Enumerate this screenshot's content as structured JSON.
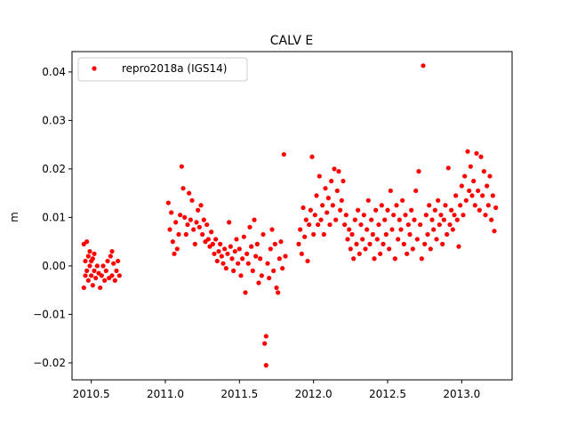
{
  "chart_data": {
    "type": "scatter",
    "title": "CALV E",
    "xlabel": "",
    "ylabel": "m",
    "xlim": [
      2010.37,
      2013.34
    ],
    "ylim": [
      -0.0235,
      0.0442
    ],
    "x_ticks": [
      2010.5,
      2011.0,
      2011.5,
      2012.0,
      2012.5,
      2013.0
    ],
    "x_tick_labels": [
      "2010.5",
      "2011.0",
      "2011.5",
      "2012.0",
      "2012.5",
      "2013.0"
    ],
    "y_ticks": [
      -0.02,
      -0.01,
      0.0,
      0.01,
      0.02,
      0.03,
      0.04
    ],
    "y_tick_labels": [
      "−0.02",
      "−0.01",
      "0.00",
      "0.01",
      "0.02",
      "0.03",
      "0.04"
    ],
    "grid": false,
    "legend": {
      "position": "top-left",
      "entries": [
        "repro2018a (IGS14)"
      ]
    },
    "series": [
      {
        "name": "repro2018a (IGS14)",
        "color": "#ff0000",
        "marker": "circle",
        "points": [
          [
            2010.45,
            -0.0045
          ],
          [
            2010.45,
            0.0045
          ],
          [
            2010.46,
            -0.002
          ],
          [
            2010.46,
            0.001
          ],
          [
            2010.47,
            0.005
          ],
          [
            2010.47,
            -0.001
          ],
          [
            2010.48,
            0.002
          ],
          [
            2010.48,
            -0.003
          ],
          [
            2010.49,
            0.0
          ],
          [
            2010.49,
            0.003
          ],
          [
            2010.5,
            -0.002
          ],
          [
            2010.5,
            0.001
          ],
          [
            2010.51,
            -0.004
          ],
          [
            2010.51,
            0.0015
          ],
          [
            2010.52,
            -0.001
          ],
          [
            2010.52,
            0.0025
          ],
          [
            2010.53,
            -0.0025
          ],
          [
            2010.54,
            0.0
          ],
          [
            2010.55,
            -0.0015
          ],
          [
            2010.56,
            -0.0045
          ],
          [
            2010.57,
            -0.002
          ],
          [
            2010.58,
            0.0
          ],
          [
            2010.59,
            -0.003
          ],
          [
            2010.6,
            -0.001
          ],
          [
            2010.61,
            0.001
          ],
          [
            2010.62,
            -0.0025
          ],
          [
            2010.63,
            0.002
          ],
          [
            2010.64,
            -0.002
          ],
          [
            2010.64,
            0.003
          ],
          [
            2010.65,
            0.0005
          ],
          [
            2010.66,
            -0.003
          ],
          [
            2010.67,
            -0.001
          ],
          [
            2010.68,
            0.001
          ],
          [
            2010.69,
            -0.002
          ],
          [
            2011.02,
            0.013
          ],
          [
            2011.03,
            0.0075
          ],
          [
            2011.04,
            0.011
          ],
          [
            2011.05,
            0.005
          ],
          [
            2011.06,
            0.0025
          ],
          [
            2011.07,
            0.009
          ],
          [
            2011.08,
            0.0035
          ],
          [
            2011.09,
            0.0065
          ],
          [
            2011.1,
            0.0105
          ],
          [
            2011.11,
            0.0205
          ],
          [
            2011.12,
            0.016
          ],
          [
            2011.13,
            0.01
          ],
          [
            2011.14,
            0.0065
          ],
          [
            2011.15,
            0.0085
          ],
          [
            2011.16,
            0.015
          ],
          [
            2011.17,
            0.0095
          ],
          [
            2011.18,
            0.0135
          ],
          [
            2011.19,
            0.0075
          ],
          [
            2011.2,
            0.0045
          ],
          [
            2011.21,
            0.009
          ],
          [
            2011.22,
            0.0115
          ],
          [
            2011.23,
            0.008
          ],
          [
            2011.24,
            0.0125
          ],
          [
            2011.25,
            0.0065
          ],
          [
            2011.26,
            0.0095
          ],
          [
            2011.27,
            0.005
          ],
          [
            2011.28,
            0.0085
          ],
          [
            2011.29,
            0.0055
          ],
          [
            2011.3,
            0.004
          ],
          [
            2011.31,
            0.007
          ],
          [
            2011.32,
            0.0045
          ],
          [
            2011.33,
            0.0025
          ],
          [
            2011.34,
            0.0055
          ],
          [
            2011.35,
            0.001
          ],
          [
            2011.36,
            0.003
          ],
          [
            2011.37,
            0.0045
          ],
          [
            2011.38,
            0.002
          ],
          [
            2011.39,
            0.0005
          ],
          [
            2011.4,
            0.0035
          ],
          [
            2011.41,
            -0.0005
          ],
          [
            2011.42,
            0.0025
          ],
          [
            2011.43,
            0.009
          ],
          [
            2011.44,
            0.004
          ],
          [
            2011.45,
            0.0015
          ],
          [
            2011.46,
            -0.001
          ],
          [
            2011.47,
            0.003
          ],
          [
            2011.48,
            0.0055
          ],
          [
            2011.49,
            0.0005
          ],
          [
            2011.5,
            0.0035
          ],
          [
            2011.51,
            -0.002
          ],
          [
            2011.52,
            0.0015
          ],
          [
            2011.53,
            0.006
          ],
          [
            2011.54,
            -0.0055
          ],
          [
            2011.55,
            0.0025
          ],
          [
            2011.56,
            0.0005
          ],
          [
            2011.57,
            0.008
          ],
          [
            2011.58,
            0.004
          ],
          [
            2011.59,
            -0.001
          ],
          [
            2011.6,
            0.0095
          ],
          [
            2011.61,
            0.002
          ],
          [
            2011.62,
            0.0045
          ],
          [
            2011.63,
            -0.0035
          ],
          [
            2011.64,
            0.0015
          ],
          [
            2011.65,
            -0.002
          ],
          [
            2011.66,
            0.0065
          ],
          [
            2011.67,
            -0.016
          ],
          [
            2011.68,
            -0.0205
          ],
          [
            2011.68,
            -0.0145
          ],
          [
            2011.69,
            0.0005
          ],
          [
            2011.7,
            -0.0025
          ],
          [
            2011.71,
            0.0035
          ],
          [
            2011.72,
            0.0075
          ],
          [
            2011.73,
            -0.001
          ],
          [
            2011.74,
            0.0045
          ],
          [
            2011.75,
            -0.0045
          ],
          [
            2011.76,
            -0.0055
          ],
          [
            2011.77,
            0.0015
          ],
          [
            2011.78,
            0.005
          ],
          [
            2011.79,
            -0.0005
          ],
          [
            2011.8,
            0.023
          ],
          [
            2011.81,
            0.002
          ],
          [
            2011.9,
            0.0045
          ],
          [
            2011.91,
            0.0075
          ],
          [
            2011.92,
            0.0025
          ],
          [
            2011.93,
            0.012
          ],
          [
            2011.94,
            0.006
          ],
          [
            2011.95,
            0.0095
          ],
          [
            2011.96,
            0.001
          ],
          [
            2011.97,
            0.0085
          ],
          [
            2011.98,
            0.0115
          ],
          [
            2011.99,
            0.0225
          ],
          [
            2012.0,
            0.0065
          ],
          [
            2012.01,
            0.0105
          ],
          [
            2012.02,
            0.0145
          ],
          [
            2012.03,
            0.0085
          ],
          [
            2012.04,
            0.0185
          ],
          [
            2012.05,
            0.0095
          ],
          [
            2012.06,
            0.0125
          ],
          [
            2012.07,
            0.0065
          ],
          [
            2012.08,
            0.016
          ],
          [
            2012.09,
            0.011
          ],
          [
            2012.1,
            0.014
          ],
          [
            2012.11,
            0.0085
          ],
          [
            2012.12,
            0.0175
          ],
          [
            2012.13,
            0.0125
          ],
          [
            2012.14,
            0.02
          ],
          [
            2012.15,
            0.0095
          ],
          [
            2012.16,
            0.0155
          ],
          [
            2012.17,
            0.0195
          ],
          [
            2012.18,
            0.0115
          ],
          [
            2012.19,
            0.0135
          ],
          [
            2012.2,
            0.0175
          ],
          [
            2012.21,
            0.0085
          ],
          [
            2012.22,
            0.0105
          ],
          [
            2012.23,
            0.0055
          ],
          [
            2012.24,
            0.0075
          ],
          [
            2012.25,
            0.0035
          ],
          [
            2012.26,
            0.0065
          ],
          [
            2012.27,
            0.0015
          ],
          [
            2012.28,
            0.0095
          ],
          [
            2012.29,
            0.0045
          ],
          [
            2012.3,
            0.0115
          ],
          [
            2012.31,
            0.0025
          ],
          [
            2012.32,
            0.0085
          ],
          [
            2012.33,
            0.0055
          ],
          [
            2012.34,
            0.0105
          ],
          [
            2012.35,
            0.0035
          ],
          [
            2012.36,
            0.0075
          ],
          [
            2012.37,
            0.0135
          ],
          [
            2012.38,
            0.0045
          ],
          [
            2012.39,
            0.0095
          ],
          [
            2012.4,
            0.0065
          ],
          [
            2012.41,
            0.0015
          ],
          [
            2012.42,
            0.0115
          ],
          [
            2012.43,
            0.0055
          ],
          [
            2012.44,
            0.0085
          ],
          [
            2012.45,
            0.0025
          ],
          [
            2012.46,
            0.0125
          ],
          [
            2012.47,
            0.0045
          ],
          [
            2012.48,
            0.0095
          ],
          [
            2012.49,
            0.0065
          ],
          [
            2012.5,
            0.0115
          ],
          [
            2012.51,
            0.0035
          ],
          [
            2012.52,
            0.0155
          ],
          [
            2012.53,
            0.0075
          ],
          [
            2012.54,
            0.0105
          ],
          [
            2012.55,
            0.0015
          ],
          [
            2012.56,
            0.0125
          ],
          [
            2012.57,
            0.0055
          ],
          [
            2012.58,
            0.0095
          ],
          [
            2012.59,
            0.0075
          ],
          [
            2012.6,
            0.0135
          ],
          [
            2012.61,
            0.0045
          ],
          [
            2012.62,
            0.0105
          ],
          [
            2012.63,
            0.0025
          ],
          [
            2012.64,
            0.0085
          ],
          [
            2012.65,
            0.0065
          ],
          [
            2012.66,
            0.0115
          ],
          [
            2012.67,
            0.0035
          ],
          [
            2012.68,
            0.0095
          ],
          [
            2012.69,
            0.0155
          ],
          [
            2012.7,
            0.0055
          ],
          [
            2012.71,
            0.0195
          ],
          [
            2012.72,
            0.0085
          ],
          [
            2012.73,
            0.0015
          ],
          [
            2012.74,
            0.0413
          ],
          [
            2012.75,
            0.0045
          ],
          [
            2012.76,
            0.0105
          ],
          [
            2012.77,
            0.0065
          ],
          [
            2012.78,
            0.0125
          ],
          [
            2012.79,
            0.0035
          ],
          [
            2012.8,
            0.0095
          ],
          [
            2012.81,
            0.0075
          ],
          [
            2012.82,
            0.0115
          ],
          [
            2012.83,
            0.0055
          ],
          [
            2012.84,
            0.0135
          ],
          [
            2012.85,
            0.0085
          ],
          [
            2012.86,
            0.0105
          ],
          [
            2012.87,
            0.0045
          ],
          [
            2012.88,
            0.0095
          ],
          [
            2012.89,
            0.0125
          ],
          [
            2012.9,
            0.0065
          ],
          [
            2012.91,
            0.0202
          ],
          [
            2012.92,
            0.0085
          ],
          [
            2012.93,
            0.0115
          ],
          [
            2012.94,
            0.0075
          ],
          [
            2012.95,
            0.0105
          ],
          [
            2012.96,
            0.0145
          ],
          [
            2012.97,
            0.0095
          ],
          [
            2012.98,
            0.004
          ],
          [
            2012.99,
            0.0125
          ],
          [
            2013.0,
            0.0165
          ],
          [
            2013.01,
            0.0105
          ],
          [
            2013.02,
            0.0185
          ],
          [
            2013.03,
            0.0135
          ],
          [
            2013.04,
            0.0236
          ],
          [
            2013.05,
            0.0155
          ],
          [
            2013.06,
            0.0205
          ],
          [
            2013.07,
            0.0145
          ],
          [
            2013.08,
            0.0175
          ],
          [
            2013.09,
            0.0125
          ],
          [
            2013.1,
            0.0232
          ],
          [
            2013.11,
            0.0155
          ],
          [
            2013.12,
            0.0115
          ],
          [
            2013.13,
            0.0225
          ],
          [
            2013.14,
            0.0145
          ],
          [
            2013.15,
            0.0195
          ],
          [
            2013.16,
            0.0105
          ],
          [
            2013.17,
            0.0165
          ],
          [
            2013.18,
            0.0125
          ],
          [
            2013.19,
            0.0185
          ],
          [
            2013.2,
            0.0095
          ],
          [
            2013.21,
            0.0145
          ],
          [
            2013.22,
            0.0072
          ],
          [
            2013.23,
            0.012
          ]
        ]
      }
    ]
  }
}
